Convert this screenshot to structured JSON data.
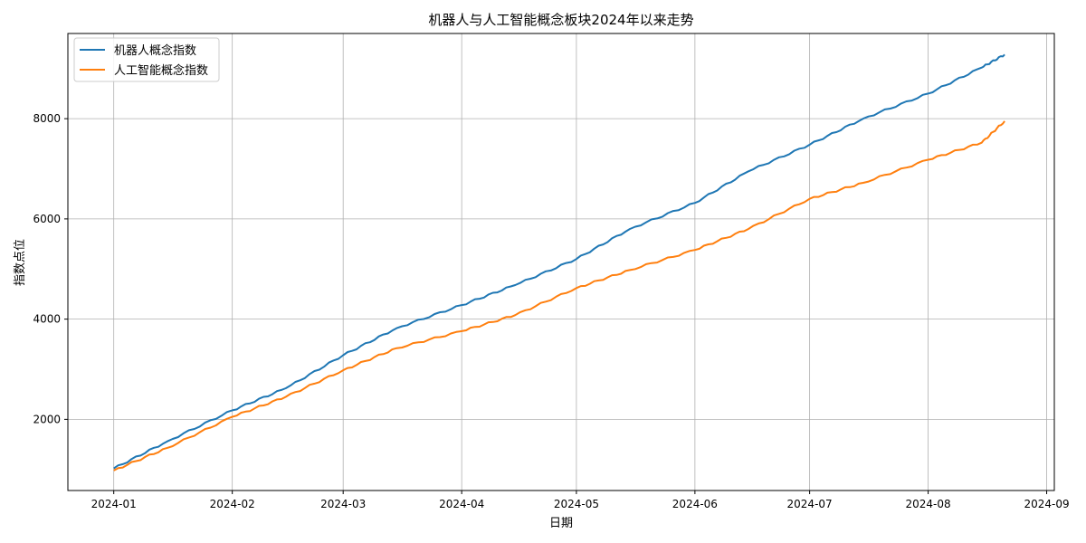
{
  "chart_data": {
    "type": "line",
    "title": "机器人与人工智能概念板块2024年以来走势",
    "xlabel": "日期",
    "ylabel": "指数点位",
    "grid": true,
    "legend_position": "top-left",
    "x_range": [
      "2023-12-20",
      "2024-09-03"
    ],
    "ylim": [
      580,
      9700
    ],
    "x_ticks": [
      "2024-01",
      "2024-02",
      "2024-03",
      "2024-04",
      "2024-05",
      "2024-06",
      "2024-07",
      "2024-08",
      "2024-09"
    ],
    "y_ticks": [
      2000,
      4000,
      6000,
      8000
    ],
    "x": [
      "2024-01-01",
      "2024-01-15",
      "2024-02-01",
      "2024-02-15",
      "2024-03-01",
      "2024-03-15",
      "2024-04-01",
      "2024-04-15",
      "2024-05-01",
      "2024-05-15",
      "2024-06-01",
      "2024-06-15",
      "2024-07-01",
      "2024-07-15",
      "2024-08-01",
      "2024-08-15",
      "2024-08-21"
    ],
    "series": [
      {
        "name": "机器人概念指数",
        "color": "#1f77b4",
        "values": [
          1020,
          1560,
          2180,
          2620,
          3280,
          3820,
          4280,
          4680,
          5200,
          5800,
          6320,
          6950,
          7480,
          8000,
          8500,
          9020,
          9280
        ]
      },
      {
        "name": "人工智能概念指数",
        "color": "#ff7f0e",
        "values": [
          980,
          1430,
          2050,
          2450,
          2980,
          3420,
          3760,
          4080,
          4620,
          4980,
          5380,
          5800,
          6400,
          6720,
          7180,
          7520,
          7950
        ]
      }
    ]
  }
}
